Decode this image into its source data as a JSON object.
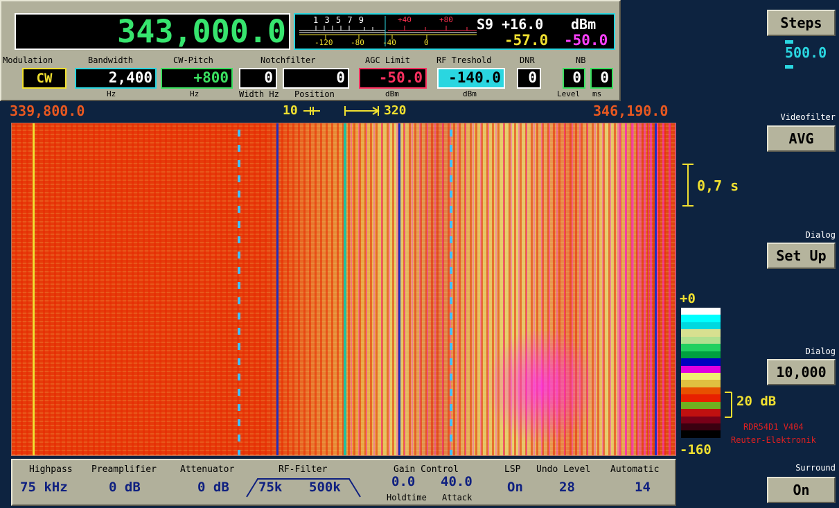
{
  "frequency": "343,000.0",
  "meter": {
    "top_ticks": "1 3 5 7 9",
    "red_ticks": [
      "+40",
      "+80"
    ],
    "bottom_ticks": [
      "-120",
      "-80",
      "-40",
      "0"
    ],
    "s_reading": "S9 +16.0",
    "unit": "dBm",
    "level_a": "-57.0",
    "level_b": "-50.0"
  },
  "controls": {
    "modulation_label": "Modulation",
    "modulation": "CW",
    "bandwidth_label": "Bandwidth",
    "bandwidth": "2,400",
    "bandwidth_unit": "Hz",
    "cwpitch_label": "CW-Pitch",
    "cwpitch": "+800",
    "cwpitch_unit": "Hz",
    "notch_label": "Notchfilter",
    "notch_width": "0",
    "notch_position": "0",
    "notch_width_label": "Width Hz",
    "notch_position_label": "Position",
    "agc_label": "AGC Limit",
    "agc": "-50.0",
    "agc_unit": "dBm",
    "rf_label": "RF Treshold",
    "rf": "-140.0",
    "rf_unit": "dBm",
    "dnr_label": "DNR",
    "dnr": "0",
    "nb_label": "NB",
    "nb_level": "0",
    "nb_ms": "0",
    "nb_level_label": "Level",
    "nb_ms_label": "ms"
  },
  "scale": {
    "left_freq": "339,800.0",
    "right_freq": "346,190.0",
    "span_a": "10",
    "span_b": "320"
  },
  "waterfall": {
    "time_marker": "0,7 s",
    "level_top": "+0",
    "level_step": "20 dB",
    "level_bottom": "-160",
    "version": "RDR54D1 V404",
    "maker": "Reuter-Elektronik",
    "colors": [
      "#ffffff",
      "#00ffff",
      "#00d8e0",
      "#d8e090",
      "#b0e090",
      "#20d060",
      "#00a040",
      "#0000c0",
      "#e000e0",
      "#f0f070",
      "#e0c040",
      "#e85000",
      "#e82000",
      "#70b020",
      "#c01010",
      "#780018",
      "#3a0010",
      "#000000"
    ]
  },
  "bottom": {
    "highpass_label": "Highpass",
    "highpass": "75 kHz",
    "preamp_label": "Preamplifier",
    "preamp": "0 dB",
    "atten_label": "Attenuator",
    "atten": "0 dB",
    "rffilter_label": "RF-Filter",
    "rffilter_low": "75k",
    "rffilter_high": "500k",
    "gain_label": "Gain Control",
    "holdtime": "0.0",
    "holdtime_label": "Holdtime",
    "attack": "40.0",
    "attack_label": "Attack",
    "lsp_label": "LSP",
    "lsp": "On",
    "undo_label": "Undo Level",
    "undo": "28",
    "auto_label": "Automatic",
    "auto": "14"
  },
  "right_panel": {
    "steps_button": "Steps",
    "steps_value": "500.0",
    "videofilter_label": "Videofilter",
    "videofilter_button": "AVG",
    "dialog1_label": "Dialog",
    "dialog1_button": "Set Up",
    "dialog2_label": "Dialog",
    "dialog2_button": "10,000",
    "surround_label": "Surround",
    "surround_button": "On"
  }
}
